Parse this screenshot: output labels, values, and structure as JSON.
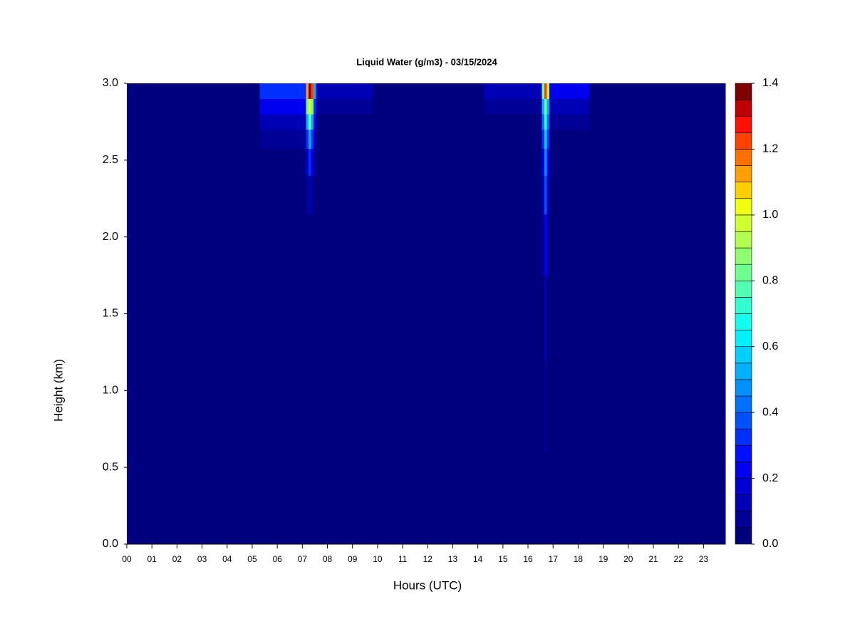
{
  "chart_data": {
    "type": "heatmap",
    "title": "Liquid Water (g/m3) - 03/15/2024",
    "x_label": "Hours (UTC)",
    "y_label": "Height (km)",
    "xlim": [
      0,
      23.87
    ],
    "ylim": [
      0,
      3.0
    ],
    "xticks": [
      {
        "value": 0,
        "label": "00"
      },
      {
        "value": 1,
        "label": "01"
      },
      {
        "value": 2,
        "label": "02"
      },
      {
        "value": 3,
        "label": "03"
      },
      {
        "value": 4,
        "label": "04"
      },
      {
        "value": 5,
        "label": "05"
      },
      {
        "value": 6,
        "label": "06"
      },
      {
        "value": 7,
        "label": "07"
      },
      {
        "value": 8,
        "label": "08"
      },
      {
        "value": 9,
        "label": "09"
      },
      {
        "value": 10,
        "label": "10"
      },
      {
        "value": 11,
        "label": "11"
      },
      {
        "value": 12,
        "label": "12"
      },
      {
        "value": 13,
        "label": "13"
      },
      {
        "value": 14,
        "label": "14"
      },
      {
        "value": 15,
        "label": "15"
      },
      {
        "value": 16,
        "label": "16"
      },
      {
        "value": 17,
        "label": "17"
      },
      {
        "value": 18,
        "label": "18"
      },
      {
        "value": 19,
        "label": "19"
      },
      {
        "value": 20,
        "label": "20"
      },
      {
        "value": 21,
        "label": "21"
      },
      {
        "value": 22,
        "label": "22"
      },
      {
        "value": 23,
        "label": "23"
      }
    ],
    "yticks": [
      {
        "value": 0,
        "label": "0.0"
      },
      {
        "value": 0.5,
        "label": "0.5"
      },
      {
        "value": 1,
        "label": "1.0"
      },
      {
        "value": 1.5,
        "label": "1.5"
      },
      {
        "value": 2,
        "label": "2.0"
      },
      {
        "value": 2.5,
        "label": "2.5"
      },
      {
        "value": 3,
        "label": "3.0"
      }
    ],
    "x": [
      3.5,
      7.1,
      7.2,
      7.3,
      7.4,
      7.5,
      7.6,
      12,
      16.5,
      16.6,
      16.7,
      16.8,
      16.9,
      20
    ],
    "y": [
      0.3,
      0.9,
      1.5,
      2.0,
      2.3,
      2.5,
      2.65,
      2.75,
      2.85,
      2.95
    ],
    "z": [
      [
        0,
        0,
        0,
        0,
        0,
        0,
        0,
        0,
        0,
        0,
        0,
        0,
        0,
        0
      ],
      [
        0,
        0,
        0,
        0,
        0,
        0,
        0,
        0,
        0,
        0,
        0.05,
        0,
        0,
        0
      ],
      [
        0,
        0,
        0,
        0,
        0,
        0,
        0,
        0,
        0,
        0,
        0.1,
        0,
        0,
        0
      ],
      [
        0,
        0,
        0,
        0,
        0,
        0,
        0,
        0,
        0,
        0.05,
        0.2,
        0.05,
        0,
        0
      ],
      [
        0,
        0,
        0.05,
        0.1,
        0.05,
        0,
        0,
        0,
        0,
        0.1,
        0.35,
        0.1,
        0,
        0
      ],
      [
        0,
        0,
        0.15,
        0.3,
        0.15,
        0.05,
        0,
        0,
        0,
        0.2,
        0.45,
        0.2,
        0,
        0
      ],
      [
        0,
        0.05,
        0.3,
        0.5,
        0.3,
        0.1,
        0,
        0,
        0,
        0.3,
        0.55,
        0.3,
        0,
        0
      ],
      [
        0,
        0.1,
        0.5,
        0.8,
        0.5,
        0.2,
        0,
        0,
        0,
        0.4,
        0.7,
        0.4,
        0.05,
        0
      ],
      [
        0,
        0.2,
        0.8,
        1.0,
        0.8,
        0.3,
        0.05,
        0,
        0.05,
        0.5,
        0.8,
        0.5,
        0.1,
        0
      ],
      [
        0,
        0.3,
        1.1,
        1.4,
        1.2,
        0.5,
        0.1,
        0,
        0.1,
        0.8,
        1.2,
        0.9,
        0.2,
        0
      ]
    ],
    "zlim": [
      0,
      1.4
    ],
    "colors": [
      "#00007f",
      "#000096",
      "#0000b4",
      "#0000d2",
      "#0000f0",
      "#0010ff",
      "#0030ff",
      "#0050ff",
      "#0070ff",
      "#0090ff",
      "#00b0ff",
      "#00d0ff",
      "#00f0ff",
      "#10ffef",
      "#30ffcf",
      "#50ffaf",
      "#70ff8f",
      "#90ff6f",
      "#b0ff4f",
      "#d0ff2f",
      "#f0ff0f",
      "#ffd000",
      "#ffa000",
      "#ff7000",
      "#ff4000",
      "#ff1000",
      "#c00000",
      "#800000"
    ],
    "colorbar_ticks": [
      {
        "value": 0,
        "label": "0.0"
      },
      {
        "value": 0.2,
        "label": "0.2"
      },
      {
        "value": 0.4,
        "label": "0.4"
      },
      {
        "value": 0.6,
        "label": "0.6"
      },
      {
        "value": 0.8,
        "label": "0.8"
      },
      {
        "value": 1.0,
        "label": "1.0"
      },
      {
        "value": 1.2,
        "label": "1.2"
      },
      {
        "value": 1.4,
        "label": "1.4"
      }
    ]
  }
}
